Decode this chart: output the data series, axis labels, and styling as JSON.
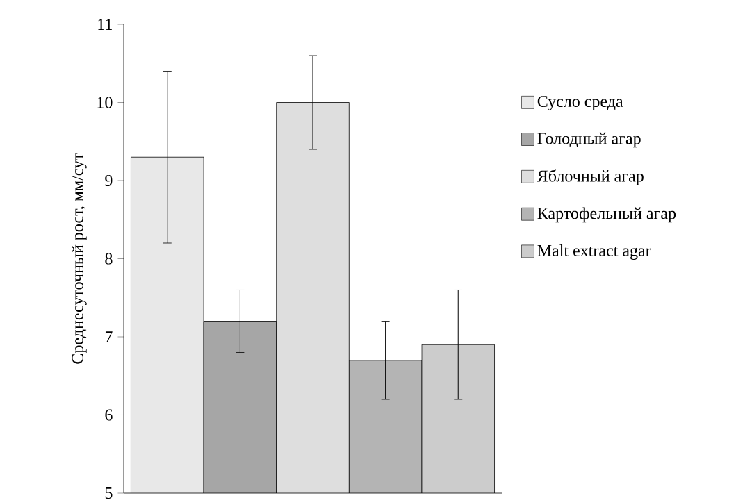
{
  "chart_data": {
    "type": "bar",
    "ylabel": "Среднесуточный рост, мм/сут",
    "categories": [
      null
    ],
    "series": [
      {
        "name": "Сусло среда",
        "color": "#e8e8e8",
        "values": [
          9.3
        ],
        "errors": [
          1.1
        ]
      },
      {
        "name": "Голодный агар",
        "color": "#a6a6a6",
        "values": [
          7.2
        ],
        "errors": [
          0.4
        ]
      },
      {
        "name": "Яблочный агар",
        "color": "#dedede",
        "values": [
          10.0
        ],
        "errors": [
          0.6
        ]
      },
      {
        "name": "Картофельный агар",
        "color": "#b4b4b4",
        "values": [
          6.7
        ],
        "errors": [
          0.5
        ]
      },
      {
        "name": "Malt extract agar",
        "color": "#cccccc",
        "values": [
          6.9
        ],
        "errors": [
          0.7
        ]
      }
    ],
    "ylim": [
      5,
      11
    ],
    "yticks": [
      5,
      6,
      7,
      8,
      9,
      10,
      11
    ],
    "legend": "right",
    "grid": false
  }
}
